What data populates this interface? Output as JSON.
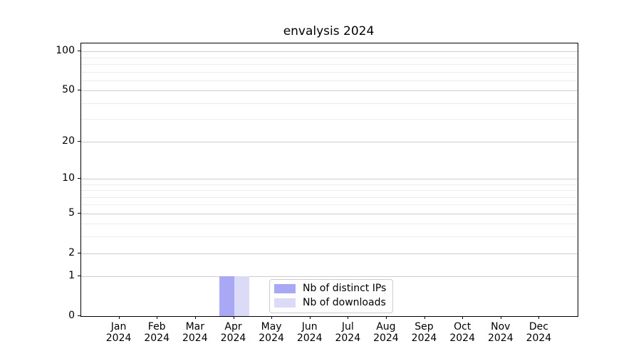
{
  "title": "envalysis 2024",
  "chart_data": {
    "type": "bar",
    "title": "envalysis 2024",
    "categories": [
      "Jan",
      "Feb",
      "Mar",
      "Apr",
      "May",
      "Jun",
      "Jul",
      "Aug",
      "Sep",
      "Oct",
      "Nov",
      "Dec"
    ],
    "category_year": "2024",
    "series": [
      {
        "name": "Nb of distinct IPs",
        "color": "#a8a8f4",
        "values": [
          0,
          0,
          0,
          1,
          0,
          0,
          0,
          0,
          0,
          0,
          0,
          0
        ]
      },
      {
        "name": "Nb of downloads",
        "color": "#dbdbf7",
        "values": [
          0,
          0,
          0,
          1,
          0,
          0,
          0,
          0,
          0,
          0,
          0,
          0
        ]
      }
    ],
    "xlabel": "",
    "ylabel": "",
    "y_axis": {
      "scale": "log1p",
      "ticks": [
        0,
        1,
        2,
        5,
        10,
        20,
        50,
        100
      ],
      "minor_ticks": [
        3,
        4,
        6,
        7,
        8,
        9,
        30,
        40,
        60,
        70,
        80,
        90
      ],
      "range": [
        0,
        115
      ]
    },
    "grid": {
      "major_color": "#cdcdcd",
      "minor_color": "#ececec",
      "enabled": true
    },
    "legend": {
      "position": "lower-center-inside"
    }
  }
}
